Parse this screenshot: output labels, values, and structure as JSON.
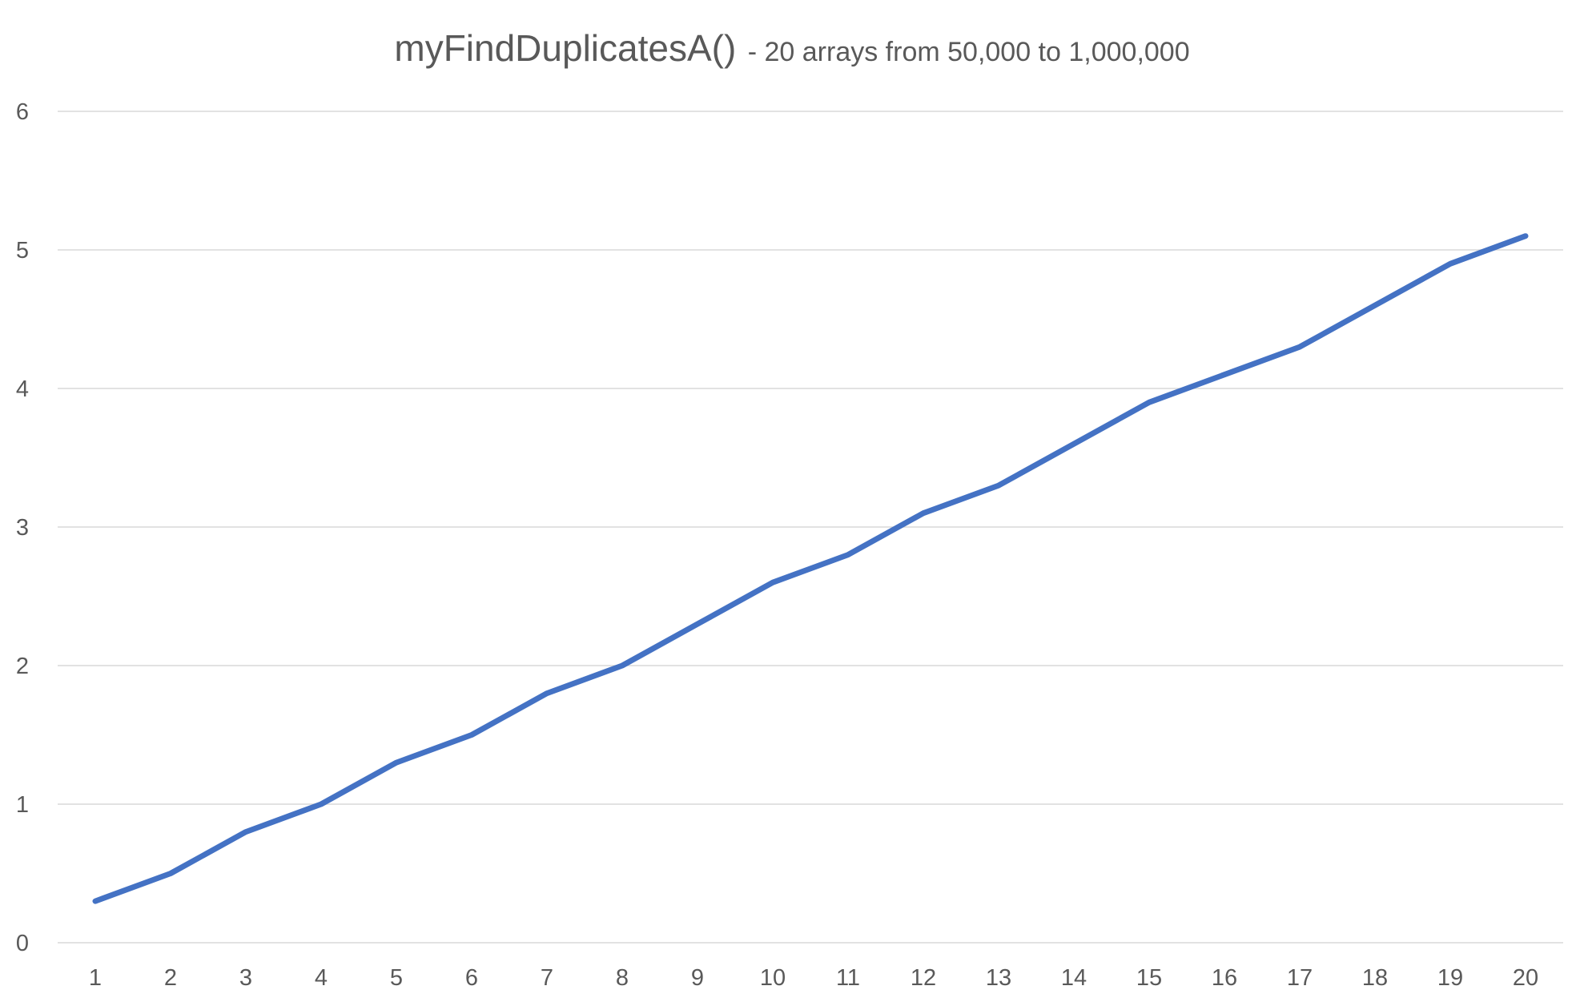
{
  "chart_data": {
    "type": "line",
    "title": "myFindDuplicatesA()",
    "subtitle": "- 20 arrays from 50,000 to 1,000,000",
    "xlabel": "",
    "ylabel": "",
    "categories": [
      "1",
      "2",
      "3",
      "4",
      "5",
      "6",
      "7",
      "8",
      "9",
      "10",
      "11",
      "12",
      "13",
      "14",
      "15",
      "16",
      "17",
      "18",
      "19",
      "20"
    ],
    "ylim": [
      0,
      6
    ],
    "yticks": [
      "0",
      "1",
      "2",
      "3",
      "4",
      "5",
      "6"
    ],
    "grid": true,
    "legend": "none",
    "series": [
      {
        "color": "#4472c4",
        "values": [
          0.3,
          0.5,
          0.8,
          1.0,
          1.3,
          1.5,
          1.8,
          2.0,
          2.3,
          2.6,
          2.8,
          3.1,
          3.3,
          3.6,
          3.9,
          4.1,
          4.3,
          4.6,
          4.9,
          5.1
        ]
      }
    ]
  }
}
